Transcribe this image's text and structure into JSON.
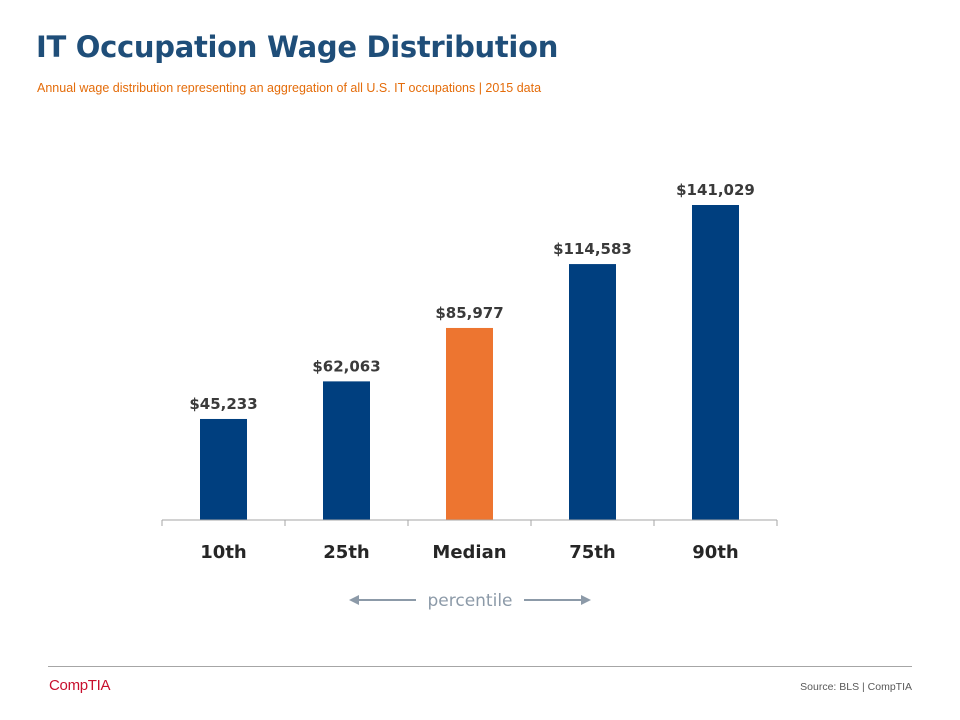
{
  "header": {
    "title": "IT Occupation Wage Distribution",
    "subtitle": "Annual wage distribution representing an aggregation of all U.S. IT occupations | 2015 data"
  },
  "chart_data": {
    "type": "bar",
    "title": "IT Occupation Wage Distribution",
    "categories": [
      "10th",
      "25th",
      "Median",
      "75th",
      "90th"
    ],
    "values": [
      45233,
      62063,
      85977,
      114583,
      141029
    ],
    "value_labels": [
      "$45,233",
      "$62,063",
      "$85,977",
      "$114,583",
      "$141,029"
    ],
    "colors": [
      "#003f7f",
      "#003f7f",
      "#ed7530",
      "#003f7f",
      "#003f7f"
    ],
    "xlabel": "percentile",
    "ylabel": "",
    "ylim": [
      0,
      150000
    ],
    "grid": false
  },
  "axis_annotation": {
    "label": "percentile",
    "color": "#8c9aa8"
  },
  "footer": {
    "brand": "CompTIA",
    "source": "Source: BLS | CompTIA"
  }
}
